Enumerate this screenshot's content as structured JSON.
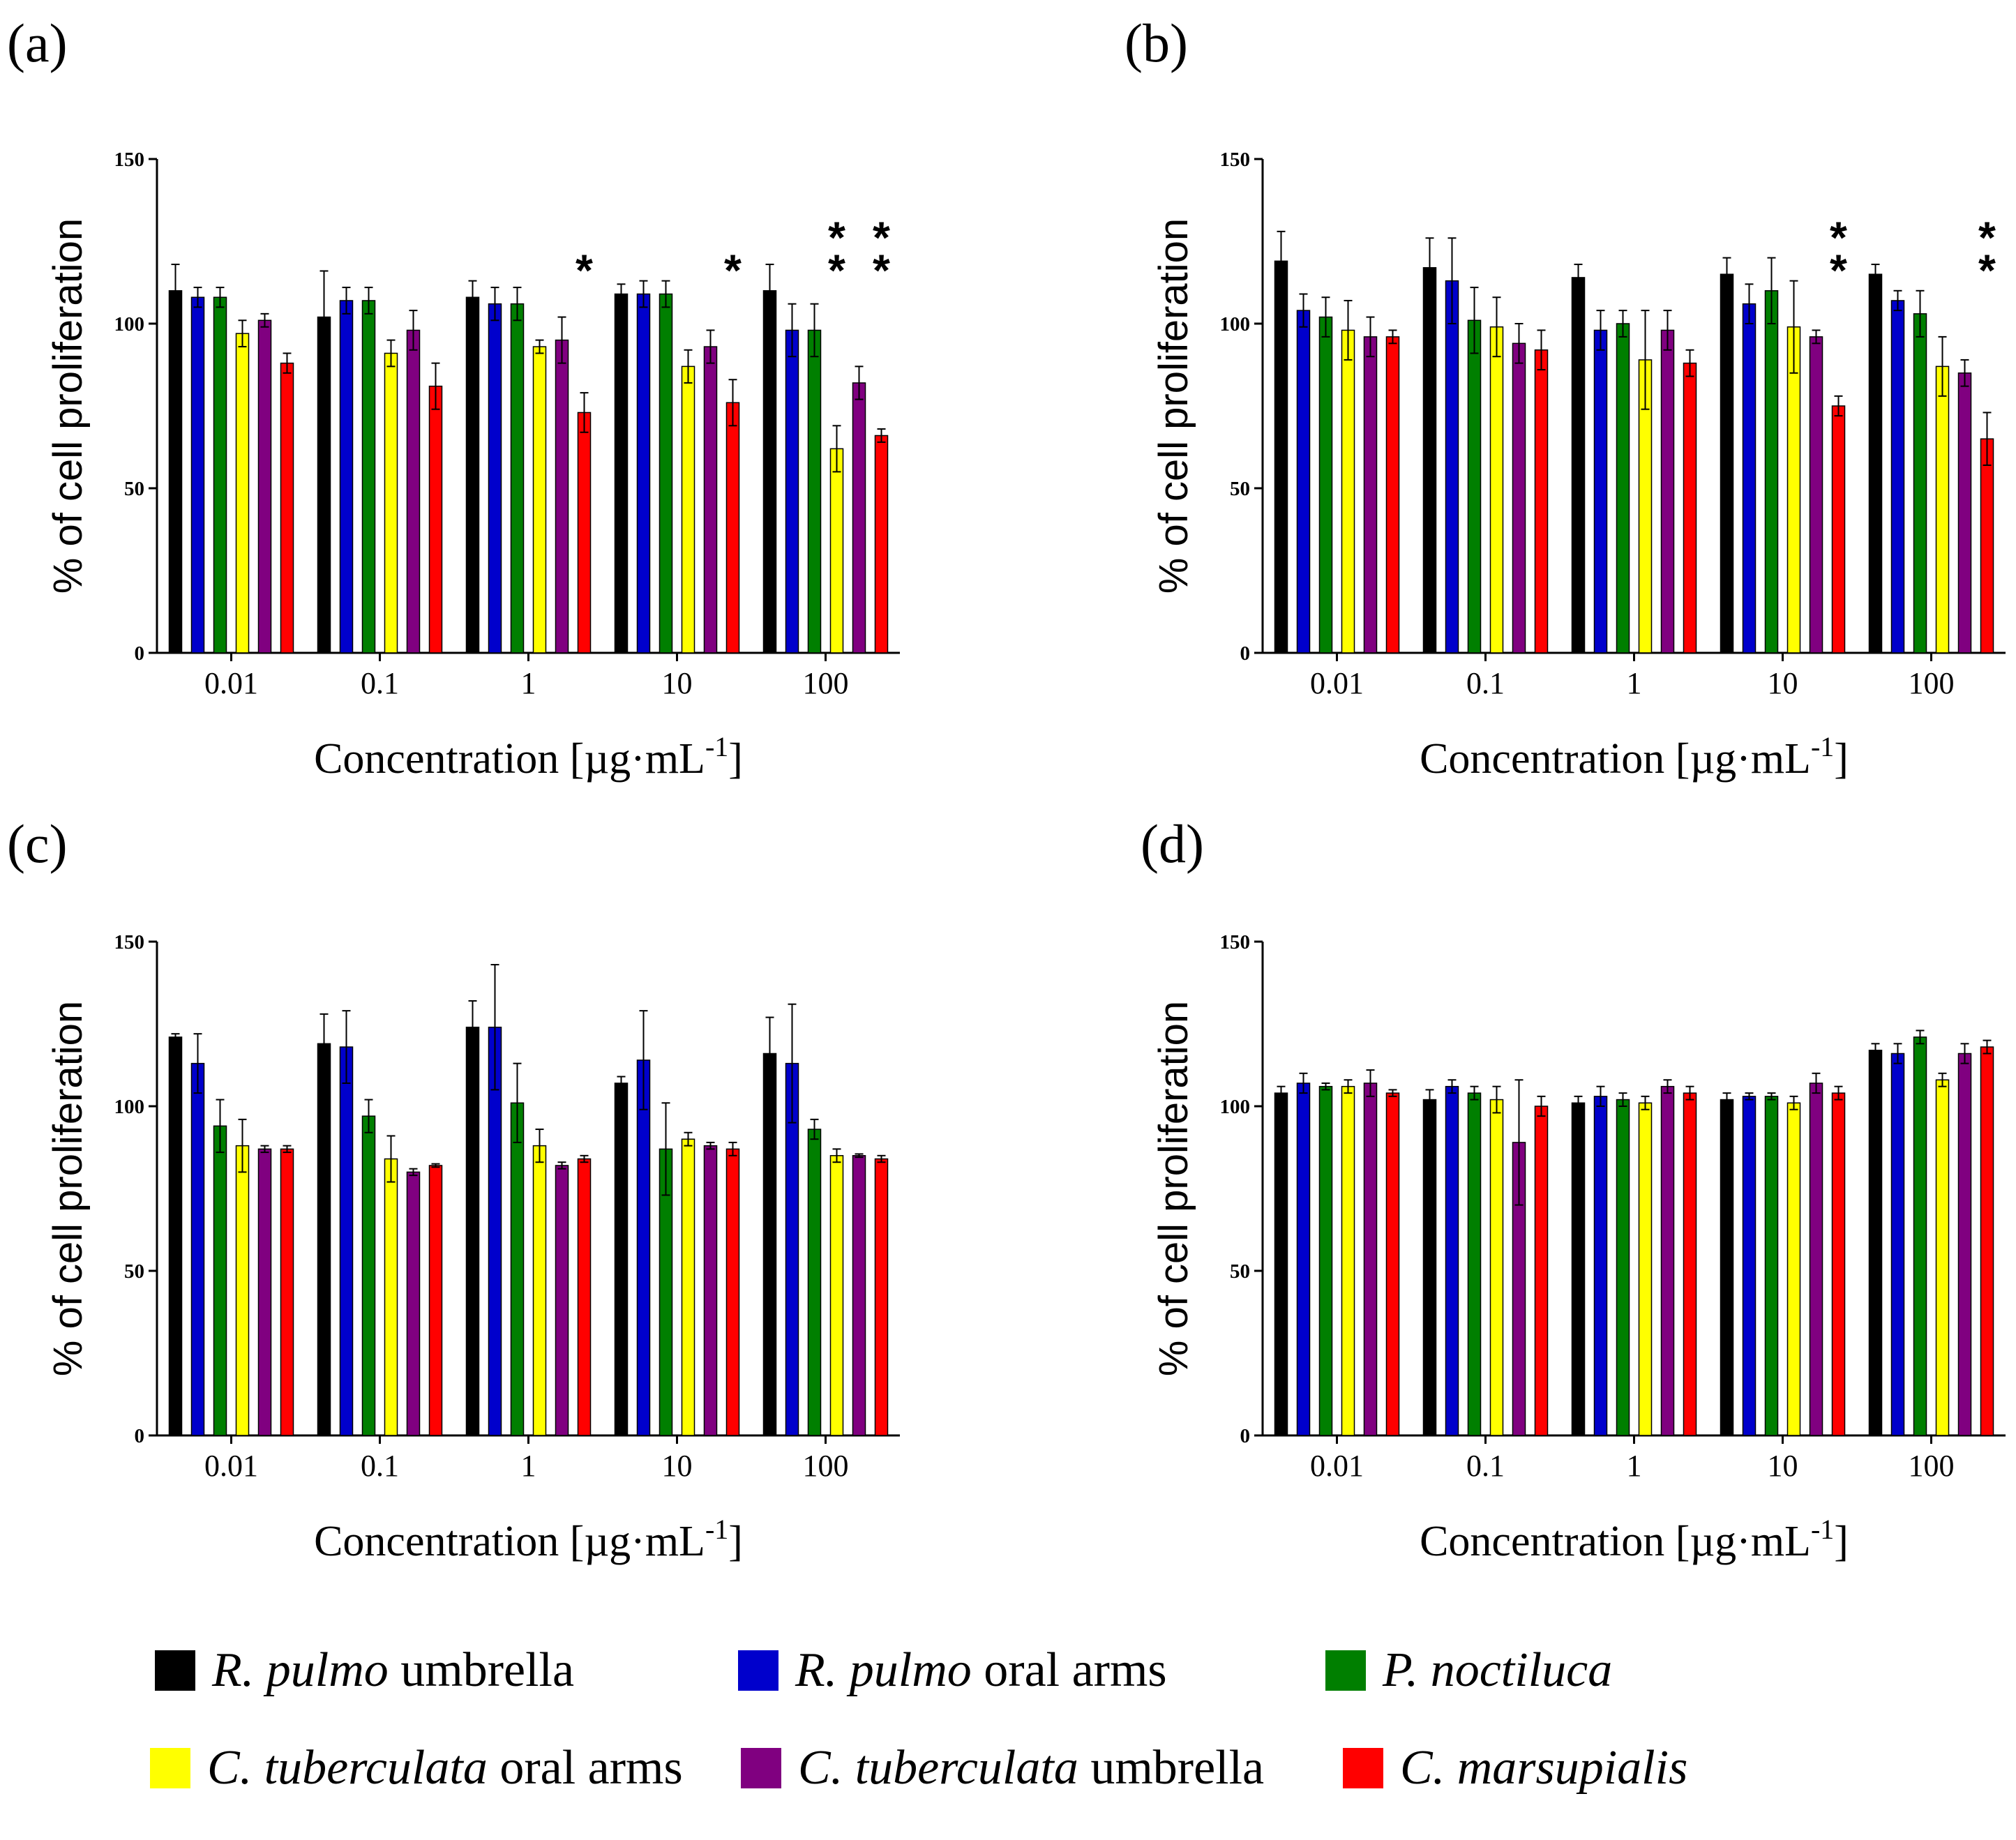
{
  "x_axis_label": "Concentration [µg·mL",
  "x_axis_label_sup": "-1",
  "x_axis_label_end": "]",
  "y_axis_label": "% of cell proliferation",
  "colors": {
    "R. pulmo umbrella": "#000000",
    "R. pulmo oral arms": "#0000cc",
    "P. noctiluca": "#007f00",
    "C. tuberculata oral arms": "#ffff00",
    "C. tuberculata umbrella": "#800080",
    "C. marsupialis": "#ff0000"
  },
  "legend": [
    {
      "italic": "R. pulmo",
      "rest": " umbrella",
      "color": "#000000"
    },
    {
      "italic": "R. pulmo",
      "rest": " oral arms",
      "color": "#0000cc"
    },
    {
      "italic": "P. noctiluca",
      "rest": "",
      "color": "#007f00"
    },
    {
      "italic": "C. tuberculata",
      "rest": " oral arms",
      "color": "#ffff00"
    },
    {
      "italic": "C. tuberculata",
      "rest": " umbrella",
      "color": "#800080"
    },
    {
      "italic": "C. marsupialis",
      "rest": "",
      "color": "#ff0000"
    }
  ],
  "chart_data": [
    {
      "panel": "(a)",
      "type": "bar",
      "categories": [
        "0.01",
        "0.1",
        "1",
        "10",
        "100"
      ],
      "ylim": [
        0,
        150
      ],
      "yticks": [
        0,
        50,
        100,
        150
      ],
      "series": [
        {
          "name": "R. pulmo umbrella",
          "values": [
            110,
            102,
            108,
            109,
            110
          ],
          "errors": [
            8,
            14,
            5,
            3,
            8
          ]
        },
        {
          "name": "R. pulmo oral arms",
          "values": [
            108,
            107,
            106,
            109,
            98
          ],
          "errors": [
            3,
            4,
            5,
            4,
            8
          ]
        },
        {
          "name": "P. noctiluca",
          "values": [
            108,
            107,
            106,
            109,
            98
          ],
          "errors": [
            3,
            4,
            5,
            4,
            8
          ]
        },
        {
          "name": "C. tuberculata oral arms",
          "values": [
            97,
            91,
            93,
            87,
            62
          ],
          "errors": [
            4,
            4,
            2,
            5,
            7
          ]
        },
        {
          "name": "C. tuberculata umbrella",
          "values": [
            101,
            98,
            95,
            93,
            82
          ],
          "errors": [
            2,
            6,
            7,
            5,
            5
          ]
        },
        {
          "name": "C. marsupialis",
          "values": [
            88,
            81,
            73,
            76,
            66
          ],
          "errors": [
            3,
            7,
            6,
            7,
            2
          ]
        }
      ],
      "significance": [
        {
          "category": "1",
          "series": "C. marsupialis",
          "mark": "*"
        },
        {
          "category": "10",
          "series": "C. marsupialis",
          "mark": "*"
        },
        {
          "category": "100",
          "series": "C. tuberculata oral arms",
          "mark": "**"
        },
        {
          "category": "100",
          "series": "C. marsupialis",
          "mark": "**"
        }
      ]
    },
    {
      "panel": "(b)",
      "type": "bar",
      "categories": [
        "0.01",
        "0.1",
        "1",
        "10",
        "100"
      ],
      "ylim": [
        0,
        150
      ],
      "yticks": [
        0,
        50,
        100,
        150
      ],
      "series": [
        {
          "name": "R. pulmo umbrella",
          "values": [
            119,
            117,
            114,
            115,
            115
          ],
          "errors": [
            9,
            9,
            4,
            5,
            3
          ]
        },
        {
          "name": "R. pulmo oral arms",
          "values": [
            104,
            113,
            98,
            106,
            107
          ],
          "errors": [
            5,
            13,
            6,
            6,
            3
          ]
        },
        {
          "name": "P. noctiluca",
          "values": [
            102,
            101,
            100,
            110,
            103
          ],
          "errors": [
            6,
            10,
            4,
            10,
            7
          ]
        },
        {
          "name": "C. tuberculata oral arms",
          "values": [
            98,
            99,
            89,
            99,
            87
          ],
          "errors": [
            9,
            9,
            15,
            14,
            9
          ]
        },
        {
          "name": "C. tuberculata umbrella",
          "values": [
            96,
            94,
            98,
            96,
            85
          ],
          "errors": [
            6,
            6,
            6,
            2,
            4
          ]
        },
        {
          "name": "C. marsupialis",
          "values": [
            96,
            92,
            88,
            75,
            65
          ],
          "errors": [
            2,
            6,
            4,
            3,
            8
          ]
        }
      ],
      "significance": [
        {
          "category": "10",
          "series": "C. marsupialis",
          "mark": "**"
        },
        {
          "category": "100",
          "series": "C. marsupialis",
          "mark": "**"
        }
      ]
    },
    {
      "panel": "(c)",
      "type": "bar",
      "categories": [
        "0.01",
        "0.1",
        "1",
        "10",
        "100"
      ],
      "ylim": [
        0,
        150
      ],
      "yticks": [
        0,
        50,
        100,
        150
      ],
      "series": [
        {
          "name": "R. pulmo umbrella",
          "values": [
            121,
            119,
            124,
            107,
            116
          ],
          "errors": [
            1,
            9,
            8,
            2,
            11
          ]
        },
        {
          "name": "R. pulmo oral arms",
          "values": [
            113,
            118,
            124,
            114,
            113
          ],
          "errors": [
            9,
            11,
            19,
            15,
            18
          ]
        },
        {
          "name": "P. noctiluca",
          "values": [
            94,
            97,
            101,
            87,
            93
          ],
          "errors": [
            8,
            5,
            12,
            14,
            3
          ]
        },
        {
          "name": "C. tuberculata oral arms",
          "values": [
            88,
            84,
            88,
            90,
            85
          ],
          "errors": [
            8,
            7,
            5,
            2,
            2
          ]
        },
        {
          "name": "C. tuberculata umbrella",
          "values": [
            87,
            80,
            82,
            88,
            85
          ],
          "errors": [
            1,
            1,
            1,
            1,
            0.5
          ]
        },
        {
          "name": "C. marsupialis",
          "values": [
            87,
            82,
            84,
            87,
            84
          ],
          "errors": [
            1,
            0.5,
            1,
            2,
            1
          ]
        }
      ],
      "significance": []
    },
    {
      "panel": "(d)",
      "type": "bar",
      "categories": [
        "0.01",
        "0.1",
        "1",
        "10",
        "100"
      ],
      "ylim": [
        0,
        150
      ],
      "yticks": [
        0,
        50,
        100,
        150
      ],
      "series": [
        {
          "name": "R. pulmo umbrella",
          "values": [
            104,
            102,
            101,
            102,
            117
          ],
          "errors": [
            2,
            3,
            2,
            2,
            2
          ]
        },
        {
          "name": "R. pulmo oral arms",
          "values": [
            107,
            106,
            103,
            103,
            116
          ],
          "errors": [
            3,
            2,
            3,
            1,
            3
          ]
        },
        {
          "name": "P. noctiluca",
          "values": [
            106,
            104,
            102,
            103,
            121
          ],
          "errors": [
            1,
            2,
            2,
            1,
            2
          ]
        },
        {
          "name": "C. tuberculata oral arms",
          "values": [
            106,
            102,
            101,
            101,
            108
          ],
          "errors": [
            2,
            4,
            2,
            2,
            2
          ]
        },
        {
          "name": "C. tuberculata umbrella",
          "values": [
            107,
            89,
            106,
            107,
            116
          ],
          "errors": [
            4,
            19,
            2,
            3,
            3
          ]
        },
        {
          "name": "C. marsupialis",
          "values": [
            104,
            100,
            104,
            104,
            118
          ],
          "errors": [
            1,
            3,
            2,
            2,
            2
          ]
        }
      ],
      "significance": []
    }
  ]
}
